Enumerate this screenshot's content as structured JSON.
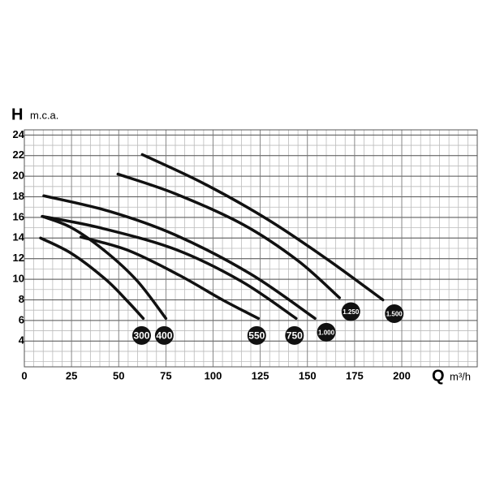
{
  "chart_data": {
    "type": "line",
    "ylabel_symbol": "H",
    "ylabel_unit": "m.c.a.",
    "xlabel_symbol": "Q",
    "xlabel_unit": "m³/h",
    "xlim": [
      0,
      240
    ],
    "ylim": [
      1.5,
      24.5
    ],
    "xticks": [
      0,
      25,
      50,
      75,
      100,
      125,
      150,
      175,
      200
    ],
    "yticks": [
      4,
      6,
      8,
      10,
      12,
      14,
      16,
      18,
      20,
      22,
      24
    ],
    "grid": true,
    "x_minor_step": 5,
    "y_minor_step": 1,
    "series": [
      {
        "name": "300",
        "color": "#111111",
        "x": [
          8.6,
          25,
          43,
          55,
          63
        ],
        "values": [
          14,
          12.5,
          10,
          7.8,
          6.2
        ]
      },
      {
        "name": "400",
        "color": "#111111",
        "x": [
          9.5,
          25,
          43,
          60,
          75
        ],
        "values": [
          16.1,
          15,
          12.7,
          9.8,
          6.2
        ]
      },
      {
        "name": "550",
        "color": "#111111",
        "x": [
          30,
          55,
          82,
          105,
          124
        ],
        "values": [
          14.1,
          12.8,
          10.4,
          8,
          6.2
        ]
      },
      {
        "name": "750",
        "color": "#111111",
        "x": [
          9.5,
          40,
          80,
          115,
          144
        ],
        "values": [
          16.1,
          15,
          12.9,
          9.8,
          6.2
        ]
      },
      {
        "name": "1.000",
        "color": "#111111",
        "x": [
          10.3,
          45,
          80,
          120,
          154
        ],
        "values": [
          18.1,
          16.6,
          14.3,
          10.5,
          6.2
        ]
      },
      {
        "name": "1.250",
        "color": "#111111",
        "x": [
          49.6,
          80,
          116,
          145,
          167
        ],
        "values": [
          20.2,
          18.3,
          15.3,
          11.8,
          8.2
        ]
      },
      {
        "name": "1.500",
        "color": "#111111",
        "x": [
          62.5,
          95,
          129,
          160,
          190
        ],
        "values": [
          22.1,
          19.3,
          15.8,
          12,
          8
        ]
      }
    ]
  }
}
